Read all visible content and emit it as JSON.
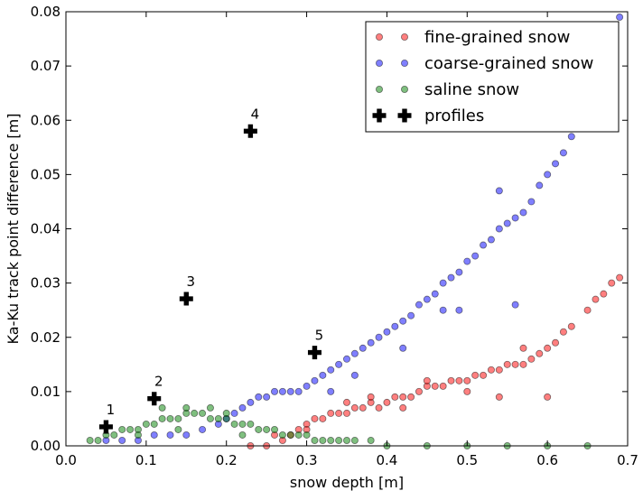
{
  "chart_data": {
    "type": "scatter",
    "xlabel": "snow depth [m]",
    "ylabel": "Ka-Ku track point difference [m]",
    "xlim": [
      0.0,
      0.7
    ],
    "ylim": [
      0.0,
      0.08
    ],
    "xticks": [
      "0.0",
      "0.1",
      "0.2",
      "0.3",
      "0.4",
      "0.5",
      "0.6",
      "0.7"
    ],
    "yticks": [
      "0.00",
      "0.01",
      "0.02",
      "0.03",
      "0.04",
      "0.05",
      "0.06",
      "0.07",
      "0.08"
    ],
    "grid": false,
    "legend_position": "top-right",
    "series": [
      {
        "name": "fine-grained snow",
        "color": "#ff0000",
        "marker": "circle",
        "points": [
          [
            0.23,
            0.0
          ],
          [
            0.25,
            0.0
          ],
          [
            0.27,
            0.001
          ],
          [
            0.28,
            0.002
          ],
          [
            0.29,
            0.003
          ],
          [
            0.3,
            0.004
          ],
          [
            0.31,
            0.005
          ],
          [
            0.32,
            0.005
          ],
          [
            0.33,
            0.006
          ],
          [
            0.34,
            0.006
          ],
          [
            0.35,
            0.006
          ],
          [
            0.36,
            0.007
          ],
          [
            0.37,
            0.007
          ],
          [
            0.38,
            0.008
          ],
          [
            0.39,
            0.007
          ],
          [
            0.4,
            0.008
          ],
          [
            0.41,
            0.009
          ],
          [
            0.42,
            0.009
          ],
          [
            0.43,
            0.009
          ],
          [
            0.44,
            0.01
          ],
          [
            0.45,
            0.011
          ],
          [
            0.46,
            0.011
          ],
          [
            0.47,
            0.011
          ],
          [
            0.48,
            0.012
          ],
          [
            0.49,
            0.012
          ],
          [
            0.5,
            0.012
          ],
          [
            0.51,
            0.013
          ],
          [
            0.52,
            0.013
          ],
          [
            0.53,
            0.014
          ],
          [
            0.54,
            0.014
          ],
          [
            0.55,
            0.015
          ],
          [
            0.56,
            0.015
          ],
          [
            0.57,
            0.015
          ],
          [
            0.58,
            0.016
          ],
          [
            0.59,
            0.017
          ],
          [
            0.6,
            0.018
          ],
          [
            0.61,
            0.019
          ],
          [
            0.62,
            0.021
          ],
          [
            0.63,
            0.022
          ],
          [
            0.65,
            0.025
          ],
          [
            0.66,
            0.027
          ],
          [
            0.67,
            0.028
          ],
          [
            0.68,
            0.03
          ],
          [
            0.69,
            0.031
          ],
          [
            0.6,
            0.009
          ],
          [
            0.54,
            0.009
          ],
          [
            0.45,
            0.012
          ],
          [
            0.38,
            0.009
          ],
          [
            0.42,
            0.007
          ],
          [
            0.5,
            0.01
          ],
          [
            0.57,
            0.018
          ],
          [
            0.35,
            0.008
          ],
          [
            0.3,
            0.003
          ],
          [
            0.26,
            0.002
          ]
        ]
      },
      {
        "name": "coarse-grained snow",
        "color": "#0000ff",
        "marker": "circle",
        "points": [
          [
            0.05,
            0.001
          ],
          [
            0.07,
            0.001
          ],
          [
            0.09,
            0.001
          ],
          [
            0.11,
            0.002
          ],
          [
            0.13,
            0.002
          ],
          [
            0.15,
            0.002
          ],
          [
            0.17,
            0.003
          ],
          [
            0.19,
            0.004
          ],
          [
            0.2,
            0.005
          ],
          [
            0.21,
            0.006
          ],
          [
            0.22,
            0.007
          ],
          [
            0.23,
            0.008
          ],
          [
            0.24,
            0.009
          ],
          [
            0.25,
            0.009
          ],
          [
            0.26,
            0.01
          ],
          [
            0.27,
            0.01
          ],
          [
            0.28,
            0.01
          ],
          [
            0.29,
            0.01
          ],
          [
            0.3,
            0.011
          ],
          [
            0.31,
            0.012
          ],
          [
            0.32,
            0.013
          ],
          [
            0.33,
            0.014
          ],
          [
            0.34,
            0.015
          ],
          [
            0.35,
            0.016
          ],
          [
            0.36,
            0.017
          ],
          [
            0.37,
            0.018
          ],
          [
            0.38,
            0.019
          ],
          [
            0.39,
            0.02
          ],
          [
            0.4,
            0.021
          ],
          [
            0.41,
            0.022
          ],
          [
            0.42,
            0.023
          ],
          [
            0.43,
            0.024
          ],
          [
            0.44,
            0.026
          ],
          [
            0.45,
            0.027
          ],
          [
            0.46,
            0.028
          ],
          [
            0.47,
            0.03
          ],
          [
            0.48,
            0.031
          ],
          [
            0.49,
            0.032
          ],
          [
            0.5,
            0.034
          ],
          [
            0.51,
            0.035
          ],
          [
            0.52,
            0.037
          ],
          [
            0.53,
            0.038
          ],
          [
            0.54,
            0.04
          ],
          [
            0.55,
            0.041
          ],
          [
            0.56,
            0.042
          ],
          [
            0.57,
            0.043
          ],
          [
            0.58,
            0.045
          ],
          [
            0.59,
            0.048
          ],
          [
            0.6,
            0.05
          ],
          [
            0.61,
            0.052
          ],
          [
            0.62,
            0.054
          ],
          [
            0.63,
            0.057
          ],
          [
            0.69,
            0.079
          ],
          [
            0.54,
            0.047
          ],
          [
            0.49,
            0.025
          ],
          [
            0.56,
            0.026
          ],
          [
            0.36,
            0.013
          ],
          [
            0.42,
            0.018
          ],
          [
            0.33,
            0.01
          ],
          [
            0.47,
            0.025
          ]
        ]
      },
      {
        "name": "saline snow",
        "color": "#008000",
        "marker": "circle",
        "points": [
          [
            0.03,
            0.001
          ],
          [
            0.04,
            0.001
          ],
          [
            0.05,
            0.002
          ],
          [
            0.06,
            0.002
          ],
          [
            0.07,
            0.003
          ],
          [
            0.08,
            0.003
          ],
          [
            0.09,
            0.003
          ],
          [
            0.1,
            0.004
          ],
          [
            0.11,
            0.004
          ],
          [
            0.12,
            0.005
          ],
          [
            0.13,
            0.005
          ],
          [
            0.14,
            0.005
          ],
          [
            0.15,
            0.006
          ],
          [
            0.16,
            0.006
          ],
          [
            0.17,
            0.006
          ],
          [
            0.18,
            0.005
          ],
          [
            0.19,
            0.005
          ],
          [
            0.2,
            0.005
          ],
          [
            0.21,
            0.004
          ],
          [
            0.22,
            0.004
          ],
          [
            0.23,
            0.004
          ],
          [
            0.24,
            0.003
          ],
          [
            0.25,
            0.003
          ],
          [
            0.26,
            0.003
          ],
          [
            0.27,
            0.002
          ],
          [
            0.28,
            0.002
          ],
          [
            0.29,
            0.002
          ],
          [
            0.3,
            0.002
          ],
          [
            0.31,
            0.001
          ],
          [
            0.32,
            0.001
          ],
          [
            0.33,
            0.001
          ],
          [
            0.34,
            0.001
          ],
          [
            0.35,
            0.001
          ],
          [
            0.36,
            0.001
          ],
          [
            0.38,
            0.001
          ],
          [
            0.4,
            0.0
          ],
          [
            0.45,
            0.0
          ],
          [
            0.5,
            0.0
          ],
          [
            0.55,
            0.0
          ],
          [
            0.6,
            0.0
          ],
          [
            0.65,
            0.0
          ],
          [
            0.12,
            0.007
          ],
          [
            0.15,
            0.007
          ],
          [
            0.18,
            0.007
          ],
          [
            0.2,
            0.006
          ],
          [
            0.09,
            0.002
          ],
          [
            0.14,
            0.003
          ],
          [
            0.22,
            0.002
          ]
        ]
      },
      {
        "name": "profiles",
        "color": "#000000",
        "marker": "plus",
        "points": [
          [
            0.05,
            0.0035
          ],
          [
            0.11,
            0.0087
          ],
          [
            0.15,
            0.0271
          ],
          [
            0.23,
            0.058
          ],
          [
            0.31,
            0.0172
          ]
        ],
        "labels": [
          "1",
          "2",
          "3",
          "4",
          "5"
        ]
      }
    ]
  }
}
